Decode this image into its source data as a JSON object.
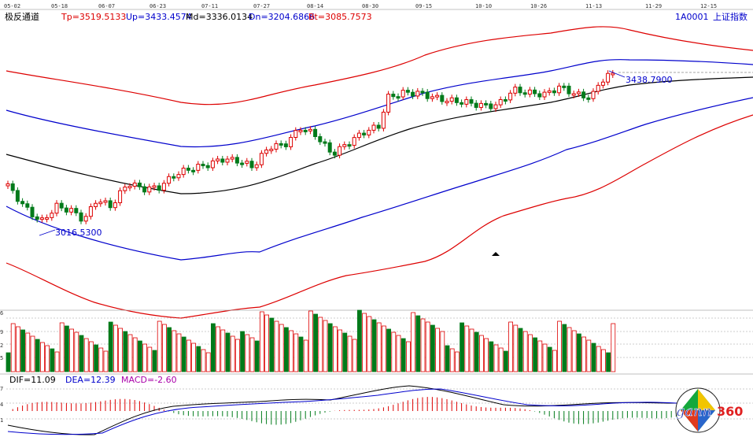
{
  "title": {
    "name": "极反通道",
    "tp": "Tp=3519.5133",
    "up": "Up=3433.4574",
    "md": "Md=3336.0134",
    "dn": "Dn=3204.6866",
    "bt": "Bt=3085.7573",
    "code": "1A0001",
    "index": "上证指数"
  },
  "date_axis": [
    "05-02",
    "05-18",
    "06-07",
    "06-23",
    "07-11",
    "07-27",
    "08-14",
    "08-30",
    "09-15",
    "10-10",
    "10-26",
    "11-13",
    "11-29",
    "12-15"
  ],
  "annotations": {
    "high": "3438.7900",
    "low": "3016.5300"
  },
  "volume_ticks": [
    "6",
    "9",
    "2",
    "5"
  ],
  "macd": {
    "dif": "DIF=11.09",
    "dea": "DEA=12.39",
    "macd": "MACD=-2.60",
    "ticks": [
      "7",
      "4",
      "1"
    ]
  },
  "logo": {
    "text": "gann360",
    "ring": "1234567890123456789"
  },
  "colors": {
    "red": "#dd0000",
    "blue": "#0000cc",
    "green": "#007a1a",
    "black": "#000000",
    "macd_label": "#aa00aa"
  }
}
